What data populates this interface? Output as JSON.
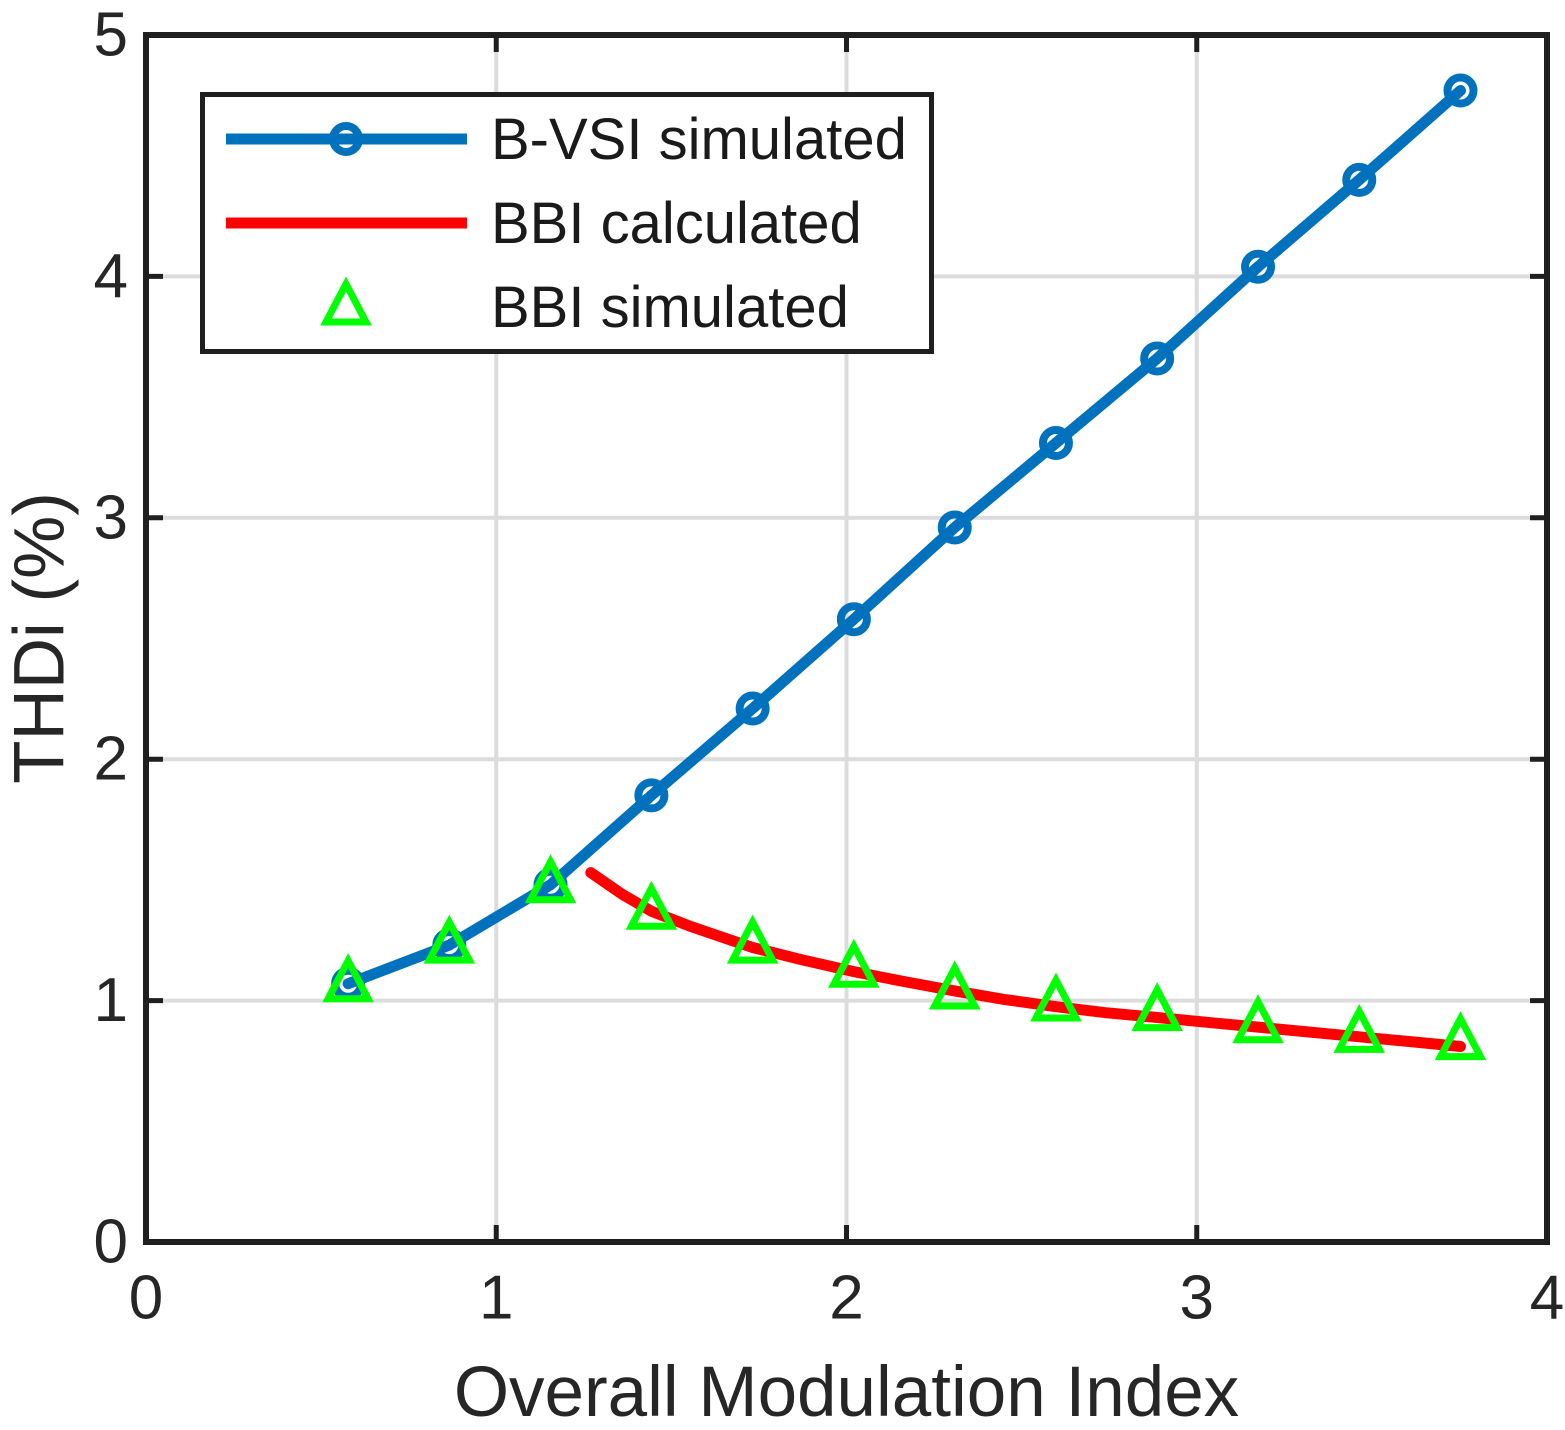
{
  "figure": {
    "background": "#ffffff"
  },
  "chart_data": {
    "type": "line",
    "title": "",
    "xlabel": "Overall Modulation Index",
    "ylabel": "THDi (%)",
    "xlim": [
      0,
      4
    ],
    "ylim": [
      0,
      5
    ],
    "xticks": [
      0,
      1,
      2,
      3,
      4
    ],
    "yticks": [
      0,
      1,
      2,
      3,
      4,
      5
    ],
    "grid": true,
    "legend_position": "top-left",
    "colors": {
      "grid": "#dcdcdc",
      "axis_box": "#1f1f1f",
      "tick_label": "#262626"
    },
    "series": [
      {
        "name": "B-VSI simulated",
        "color": "#0072BD",
        "marker": "circle",
        "line": true,
        "x": [
          0.577,
          0.866,
          1.155,
          1.443,
          1.732,
          2.021,
          2.309,
          2.598,
          2.887,
          3.175,
          3.464,
          3.753
        ],
        "y": [
          1.07,
          1.23,
          1.48,
          1.85,
          2.21,
          2.58,
          2.96,
          3.31,
          3.66,
          4.04,
          4.4,
          4.77
        ]
      },
      {
        "name": "BBI calculated",
        "color": "#FF0000",
        "marker": "none",
        "line": true,
        "x": [
          1.27,
          1.36,
          1.443,
          1.55,
          1.65,
          1.732,
          1.87,
          2.021,
          2.16,
          2.309,
          2.45,
          2.598,
          2.74,
          2.887,
          3.03,
          3.175,
          3.32,
          3.464,
          3.61,
          3.753
        ],
        "y": [
          1.53,
          1.44,
          1.37,
          1.31,
          1.26,
          1.22,
          1.17,
          1.12,
          1.08,
          1.04,
          1.005,
          0.975,
          0.95,
          0.93,
          0.91,
          0.89,
          0.87,
          0.85,
          0.83,
          0.81
        ]
      },
      {
        "name": "BBI simulated",
        "color": "#00FF00",
        "marker": "triangle",
        "line": false,
        "x": [
          0.577,
          0.866,
          1.155,
          1.443,
          1.732,
          2.021,
          2.309,
          2.598,
          2.887,
          3.175,
          3.464,
          3.753
        ],
        "y": [
          1.07,
          1.23,
          1.48,
          1.37,
          1.23,
          1.13,
          1.04,
          0.99,
          0.95,
          0.9,
          0.86,
          0.83
        ]
      }
    ]
  }
}
